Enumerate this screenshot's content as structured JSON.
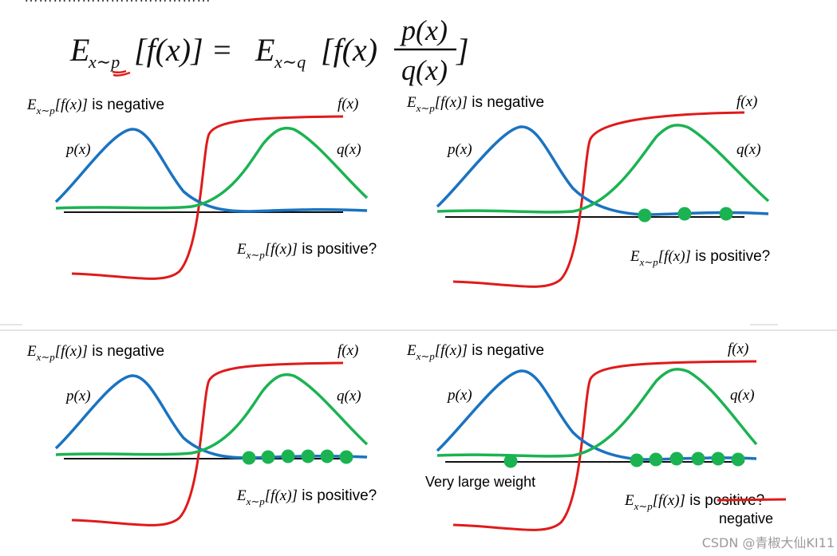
{
  "header_clip_text": "…………………………………",
  "formula": {
    "lhs_E": "E",
    "lhs_sub": "x∼p",
    "lhs_body": "[f(x)] = ",
    "rhs_E": "E",
    "rhs_sub": "x∼q",
    "rhs_body": "[f(x)",
    "frac_num": "p(x)",
    "frac_den": "q(x)",
    "close": "]"
  },
  "panels": [
    {
      "neg_E": "E",
      "neg_sub": "x∼p",
      "neg_body": "[f(x)]",
      "neg_text": " is negative",
      "fx_label": "f(x)",
      "px_label": "p(x)",
      "qx_label": "q(x)",
      "pos_E": "E",
      "pos_sub": "x∼p",
      "pos_body": "[f(x)]",
      "pos_text": " is positive?"
    },
    {
      "neg_E": "E",
      "neg_sub": "x∼p",
      "neg_body": "[f(x)]",
      "neg_text": " is negative",
      "fx_label": "f(x)",
      "px_label": "p(x)",
      "qx_label": "q(x)",
      "pos_E": "E",
      "pos_sub": "x∼p",
      "pos_body": "[f(x)]",
      "pos_text": " is positive?",
      "sample_count": 3
    },
    {
      "neg_E": "E",
      "neg_sub": "x∼p",
      "neg_body": "[f(x)]",
      "neg_text": " is negative",
      "fx_label": "f(x)",
      "px_label": "p(x)",
      "qx_label": "q(x)",
      "pos_E": "E",
      "pos_sub": "x∼p",
      "pos_body": "[f(x)]",
      "pos_text": " is positive?",
      "sample_count": 6
    },
    {
      "neg_E": "E",
      "neg_sub": "x∼p",
      "neg_body": "[f(x)]",
      "neg_text": " is negative",
      "fx_label": "f(x)",
      "px_label": "p(x)",
      "qx_label": "q(x)",
      "pos_E": "E",
      "pos_sub": "x∼p",
      "pos_body": "[f(x)]",
      "pos_text_is": " is ",
      "pos_text_struck": "positive?",
      "correction": "negative",
      "weight_label": "Very large weight",
      "sample_count": 7
    }
  ],
  "watermark": "CSDN @青椒大仙KI11",
  "colors": {
    "p_curve": "#1a73c1",
    "q_curve": "#1bb352",
    "f_curve": "#e01a1a",
    "axis": "#111111"
  }
}
